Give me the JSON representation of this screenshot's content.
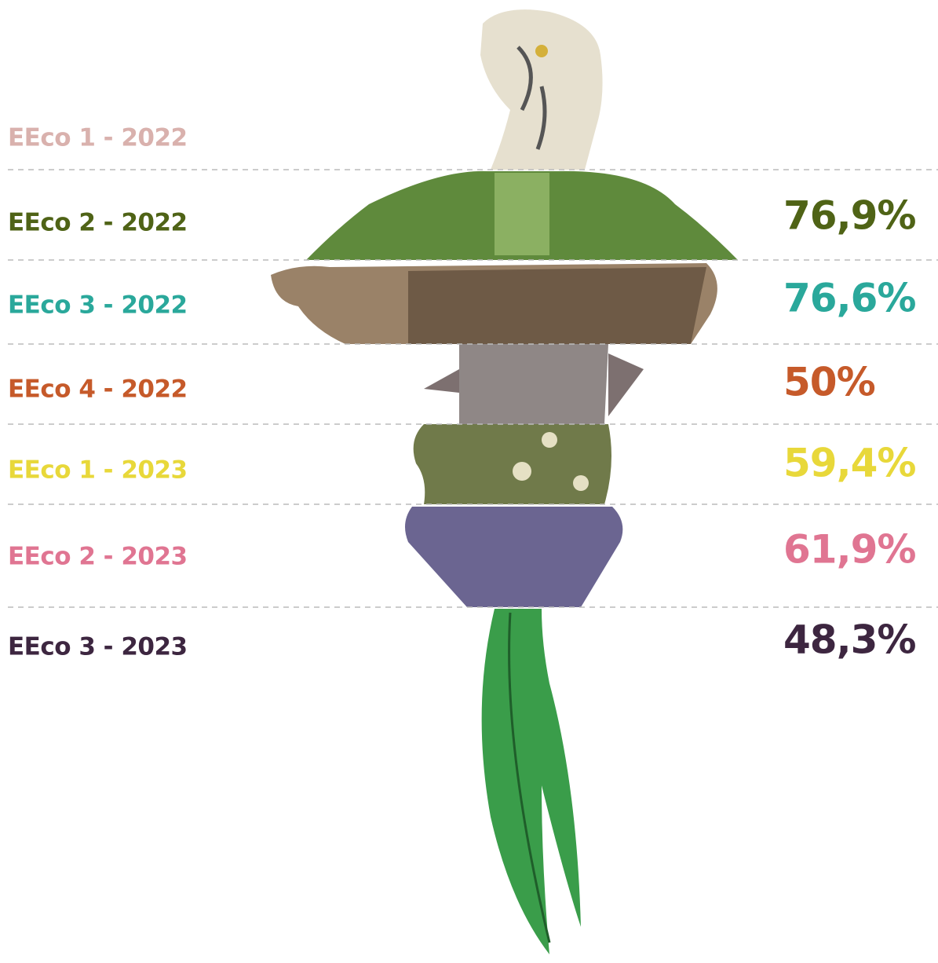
{
  "rows": [
    {
      "label": "EEco 1 - 2022",
      "color": "#d9b1ad"
    },
    {
      "label": "EEco 2 - 2022",
      "value": "76,9%",
      "color": "#4f6316"
    },
    {
      "label": "EEco 3 - 2022",
      "value": "76,6%",
      "color": "#2aa89b"
    },
    {
      "label": "EEco 4 - 2022",
      "value": "50%",
      "color": "#c65a2a"
    },
    {
      "label": "EEco 1 - 2023",
      "value": "59,4%",
      "color": "#e8d83a"
    },
    {
      "label": "EEco 2 - 2023",
      "value": "61,9%",
      "color": "#e07592"
    },
    {
      "label": "EEco 3 - 2023",
      "value": "48,3%",
      "color": "#3d2640"
    }
  ]
}
